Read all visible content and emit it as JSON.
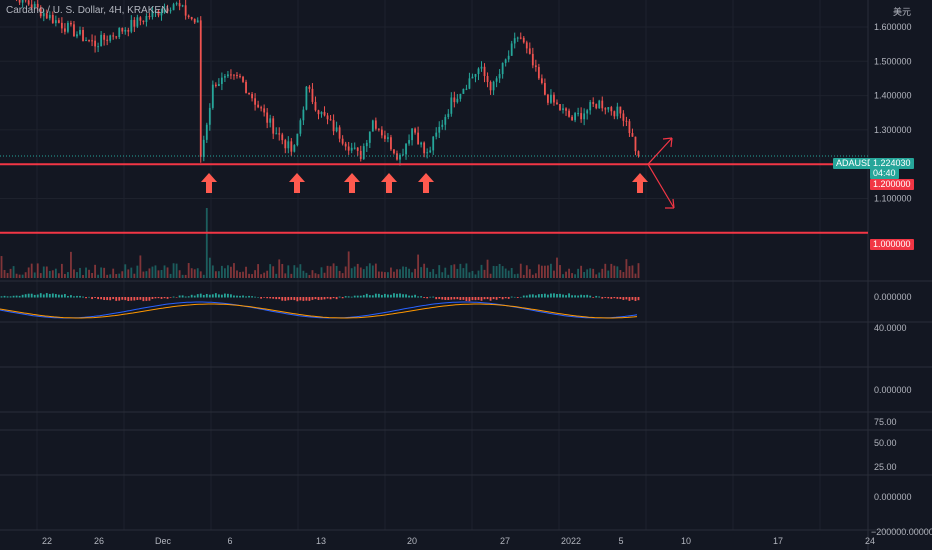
{
  "header": {
    "symbol_line": "Cardano / U. S. Dollar, 4H, KRAKEN",
    "currency": "美元"
  },
  "colors": {
    "bg": "#131722",
    "up": "#26a69a",
    "down": "#ef5350",
    "level": "#f23645",
    "arrow": "#ff5a4f",
    "grid": "#1e222d",
    "text": "#b2b5be",
    "macd": "#2962ff",
    "signal": "#ff9800"
  },
  "price_axis": {
    "ticks": [
      "1.600000",
      "1.500000",
      "1.400000",
      "1.300000",
      "1.100000"
    ],
    "levels": [
      "1.200000",
      "1.000000"
    ],
    "current": {
      "symbol": "ADAUSD",
      "price": "1.224030",
      "countdown": "04:40"
    }
  },
  "pane_labels": [
    "0.000000",
    "40.0000",
    "0.000000",
    "75.00",
    "50.00",
    "25.00",
    "0.000000",
    "−200000.000000"
  ],
  "time_axis": [
    "22",
    "26",
    "Dec",
    "6",
    "13",
    "20",
    "27",
    "2022",
    "5",
    "10",
    "17",
    "24"
  ],
  "chart_data": {
    "type": "candlestick",
    "series": "ADAUSD 4H",
    "ylim": [
      0.98,
      1.68
    ],
    "support_level": 1.2,
    "psych_level": 1.0,
    "last_price": 1.22403,
    "bounce_markers": 6,
    "projection": "up or down from 1.20 support",
    "key_points": [
      {
        "x": "Nov 19",
        "close": 1.72
      },
      {
        "x": "Nov 23",
        "close": 1.62
      },
      {
        "x": "Nov 26",
        "close": 1.55
      },
      {
        "x": "Dec 2",
        "close": 1.67
      },
      {
        "x": "Dec 4",
        "close": 1.6
      },
      {
        "x": "Dec 4",
        "close": 1.38
      },
      {
        "x": "Dec 4",
        "close": 1.22
      },
      {
        "x": "Dec 5",
        "close": 1.44
      },
      {
        "x": "Dec 7",
        "close": 1.45
      },
      {
        "x": "Dec 9",
        "close": 1.33
      },
      {
        "x": "Dec 11",
        "close": 1.23
      },
      {
        "x": "Dec 12",
        "close": 1.42
      },
      {
        "x": "Dec 13",
        "close": 1.35
      },
      {
        "x": "Dec 16",
        "close": 1.22
      },
      {
        "x": "Dec 17",
        "close": 1.33
      },
      {
        "x": "Dec 19",
        "close": 1.22
      },
      {
        "x": "Dec 20",
        "close": 1.31
      },
      {
        "x": "Dec 21",
        "close": 1.22
      },
      {
        "x": "Dec 23",
        "close": 1.39
      },
      {
        "x": "Dec 25",
        "close": 1.48
      },
      {
        "x": "Dec 26",
        "close": 1.42
      },
      {
        "x": "Dec 28",
        "close": 1.58
      },
      {
        "x": "Dec 30",
        "close": 1.4
      },
      {
        "x": "Jan 1",
        "close": 1.33
      },
      {
        "x": "Jan 3",
        "close": 1.38
      },
      {
        "x": "Jan 5",
        "close": 1.34
      },
      {
        "x": "Jan 6",
        "close": 1.22
      }
    ]
  }
}
